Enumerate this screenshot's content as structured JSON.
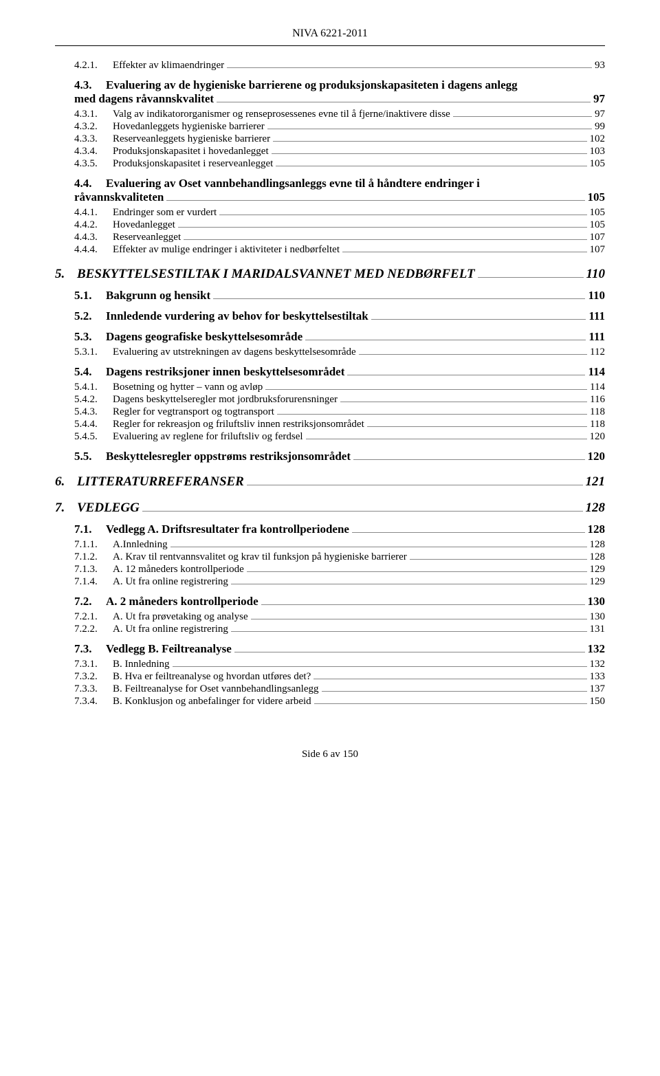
{
  "header": "NIVA 6221-2011",
  "footer": "Side 6  av 150",
  "toc": [
    {
      "lvl": 3,
      "num": "4.2.1.",
      "label": "Effekter av klimaendringer",
      "page": "93"
    },
    {
      "lvl": "2ml",
      "num": "4.3.",
      "labelA": "Evaluering av de hygieniske barrierene og produksjonskapasiteten i dagens anlegg",
      "labelB": "med dagens råvannskvalitet",
      "page": "97"
    },
    {
      "lvl": 3,
      "num": "4.3.1.",
      "label": "Valg av indikatororganismer og renseprosessenes evne til å fjerne/inaktivere disse",
      "page": "97"
    },
    {
      "lvl": 3,
      "num": "4.3.2.",
      "label": "Hovedanleggets hygieniske barrierer",
      "page": "99"
    },
    {
      "lvl": 3,
      "num": "4.3.3.",
      "label": "Reserveanleggets hygieniske barrierer",
      "page": "102"
    },
    {
      "lvl": 3,
      "num": "4.3.4.",
      "label": "Produksjonskapasitet i hovedanlegget",
      "page": "103"
    },
    {
      "lvl": 3,
      "num": "4.3.5.",
      "label": "Produksjonskapasitet i reserveanlegget",
      "page": "105"
    },
    {
      "lvl": "2ml",
      "num": "4.4.",
      "labelA": "Evaluering av Oset vannbehandlingsanleggs evne til å håndtere endringer i",
      "labelB": "råvannskvaliteten",
      "page": "105"
    },
    {
      "lvl": 3,
      "num": "4.4.1.",
      "label": "Endringer som er vurdert",
      "page": "105"
    },
    {
      "lvl": 3,
      "num": "4.4.2.",
      "label": "Hovedanlegget",
      "page": "105"
    },
    {
      "lvl": 3,
      "num": "4.4.3.",
      "label": "Reserveanlegget",
      "page": "107"
    },
    {
      "lvl": 3,
      "num": "4.4.4.",
      "label": "Effekter av mulige endringer i aktiviteter i nedbørfeltet",
      "page": "107"
    },
    {
      "lvl": 1,
      "num": "5.",
      "label": "BESKYTTELSESTILTAK I MARIDALSVANNET MED NEDBØRFELT",
      "page": "110"
    },
    {
      "lvl": 2,
      "num": "5.1.",
      "label": "Bakgrunn og hensikt",
      "page": "110"
    },
    {
      "lvl": 2,
      "num": "5.2.",
      "label": "Innledende vurdering av behov for beskyttelsestiltak",
      "page": "111"
    },
    {
      "lvl": 2,
      "num": "5.3.",
      "label": "Dagens geografiske beskyttelsesområde",
      "page": "111"
    },
    {
      "lvl": 3,
      "num": "5.3.1.",
      "label": "Evaluering av utstrekningen av dagens beskyttelsesområde",
      "page": "112"
    },
    {
      "lvl": 2,
      "num": "5.4.",
      "label": "Dagens restriksjoner innen beskyttelsesområdet",
      "page": "114"
    },
    {
      "lvl": 3,
      "num": "5.4.1.",
      "label": "Bosetning og hytter – vann og avløp",
      "page": "114"
    },
    {
      "lvl": 3,
      "num": "5.4.2.",
      "label": "Dagens beskyttelseregler mot jordbruksforurensninger",
      "page": "116"
    },
    {
      "lvl": 3,
      "num": "5.4.3.",
      "label": "Regler for vegtransport og togtransport",
      "page": "118"
    },
    {
      "lvl": 3,
      "num": "5.4.4.",
      "label": "Regler for rekreasjon og friluftsliv innen restriksjonsområdet",
      "page": "118"
    },
    {
      "lvl": 3,
      "num": "5.4.5.",
      "label": "Evaluering av reglene for friluftsliv og ferdsel",
      "page": "120"
    },
    {
      "lvl": 2,
      "num": "5.5.",
      "label": "Beskyttelesregler oppstrøms restriksjonsområdet",
      "page": "120"
    },
    {
      "lvl": 1,
      "num": "6.",
      "label": "LITTERATURREFERANSER",
      "page": "121"
    },
    {
      "lvl": 1,
      "num": "7.",
      "label": "VEDLEGG",
      "page": "128"
    },
    {
      "lvl": 2,
      "num": "7.1.",
      "label": "Vedlegg A. Driftsresultater fra kontrollperiodene",
      "page": "128"
    },
    {
      "lvl": 3,
      "num": "7.1.1.",
      "label": "A.Innledning",
      "page": "128"
    },
    {
      "lvl": 3,
      "num": "7.1.2.",
      "label": "A. Krav til rentvannsvalitet og krav til funksjon på hygieniske barrierer",
      "page": "128"
    },
    {
      "lvl": 3,
      "num": "7.1.3.",
      "label": "A. 12 måneders kontrollperiode",
      "page": "129"
    },
    {
      "lvl": 3,
      "num": "7.1.4.",
      "label": "A. Ut fra online registrering",
      "page": "129"
    },
    {
      "lvl": 2,
      "num": "7.2.",
      "label": "A. 2 måneders kontrollperiode",
      "page": "130"
    },
    {
      "lvl": 3,
      "num": "7.2.1.",
      "label": "A. Ut fra prøvetaking og analyse",
      "page": "130"
    },
    {
      "lvl": 3,
      "num": "7.2.2.",
      "label": "A. Ut fra online registrering",
      "page": "131"
    },
    {
      "lvl": 2,
      "num": "7.3.",
      "label": "Vedlegg B. Feiltreanalyse",
      "page": "132"
    },
    {
      "lvl": 3,
      "num": "7.3.1.",
      "label": "B. Innledning",
      "page": "132"
    },
    {
      "lvl": 3,
      "num": "7.3.2.",
      "label": "B. Hva er feiltreanalyse og hvordan utføres det?",
      "page": "133"
    },
    {
      "lvl": 3,
      "num": "7.3.3.",
      "label": "B. Feiltreanalyse for Oset vannbehandlingsanlegg",
      "page": "137"
    },
    {
      "lvl": 3,
      "num": "7.3.4.",
      "label": "B. Konklusjon og anbefalinger for videre arbeid",
      "page": "150"
    }
  ]
}
